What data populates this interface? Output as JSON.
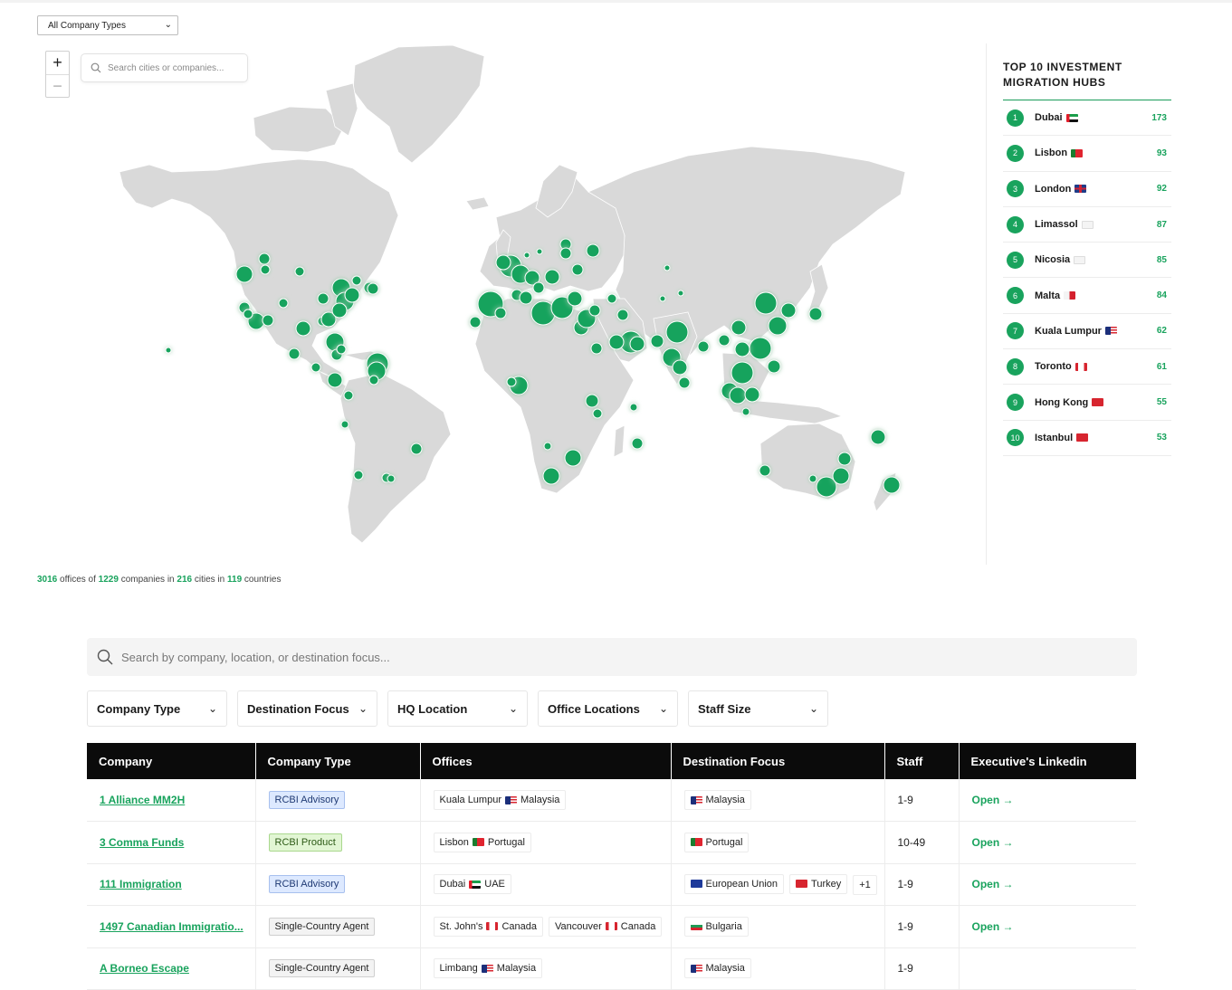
{
  "map": {
    "company_type_select": {
      "value": "All Company Types",
      "options": [
        "All Company Types"
      ]
    },
    "zoom_in": "+",
    "zoom_out": "−",
    "search_placeholder": "Search cities or companies...",
    "summary": {
      "offices": "3016",
      "offices_text": "offices of",
      "companies": "1229",
      "companies_text": "companies in",
      "cities": "216",
      "cities_text": "cities in",
      "countries": "119",
      "countries_text": "countries"
    },
    "marker_color": "#19a35d",
    "land_color": "#d9d9d9"
  },
  "hubs": {
    "title": "TOP 10 INVESTMENT MIGRATION HUBS",
    "items": [
      {
        "rank": "1",
        "city": "Dubai",
        "flag": "ae",
        "count": "173"
      },
      {
        "rank": "2",
        "city": "Lisbon",
        "flag": "pt",
        "count": "93"
      },
      {
        "rank": "3",
        "city": "London",
        "flag": "gb",
        "count": "92"
      },
      {
        "rank": "4",
        "city": "Limassol",
        "flag": "cy",
        "count": "87"
      },
      {
        "rank": "5",
        "city": "Nicosia",
        "flag": "cy",
        "count": "85"
      },
      {
        "rank": "6",
        "city": "Malta",
        "flag": "mt",
        "count": "84"
      },
      {
        "rank": "7",
        "city": "Kuala Lumpur",
        "flag": "my",
        "count": "62"
      },
      {
        "rank": "8",
        "city": "Toronto",
        "flag": "ca",
        "count": "61"
      },
      {
        "rank": "9",
        "city": "Hong Kong",
        "flag": "hk",
        "count": "55"
      },
      {
        "rank": "10",
        "city": "Istanbul",
        "flag": "tr",
        "count": "53"
      }
    ]
  },
  "directory": {
    "search_placeholder": "Search by company, location, or destination focus...",
    "filters": [
      "Company Type",
      "Destination Focus",
      "HQ Location",
      "Office Locations",
      "Staff Size"
    ],
    "columns": [
      "Company",
      "Company Type",
      "Offices",
      "Destination Focus",
      "Staff",
      "Executive's Linkedin"
    ],
    "rows": [
      {
        "company": "1 Alliance MM2H",
        "type": "RCBI Advisory",
        "type_style": "advisory",
        "offices": [
          {
            "city": "Kuala Lumpur",
            "flag": "my",
            "country": "Malaysia"
          }
        ],
        "focus": [
          {
            "flag": "my",
            "name": "Malaysia"
          }
        ],
        "focus_more": "",
        "staff": "1-9",
        "linkedin": "Open →"
      },
      {
        "company": "3 Comma Funds",
        "type": "RCBI Product",
        "type_style": "product",
        "offices": [
          {
            "city": "Lisbon",
            "flag": "pt",
            "country": "Portugal"
          }
        ],
        "focus": [
          {
            "flag": "pt",
            "name": "Portugal"
          }
        ],
        "focus_more": "",
        "staff": "10-49",
        "linkedin": "Open →"
      },
      {
        "company": "111 Immigration",
        "type": "RCBI Advisory",
        "type_style": "advisory",
        "offices": [
          {
            "city": "Dubai",
            "flag": "ae",
            "country": "UAE"
          }
        ],
        "focus": [
          {
            "flag": "eu",
            "name": "European Union"
          },
          {
            "flag": "tr",
            "name": "Turkey"
          }
        ],
        "focus_more": "+1",
        "staff": "1-9",
        "linkedin": "Open →"
      },
      {
        "company": "1497 Canadian Immigratio...",
        "type": "Single-Country Agent",
        "type_style": "agent",
        "offices": [
          {
            "city": "St. John's",
            "flag": "ca",
            "country": "Canada"
          },
          {
            "city": "Vancouver",
            "flag": "ca",
            "country": "Canada"
          }
        ],
        "focus": [
          {
            "flag": "bg",
            "name": "Bulgaria"
          }
        ],
        "focus_more": "",
        "staff": "1-9",
        "linkedin": "Open →"
      },
      {
        "company": "A Borneo Escape",
        "type": "Single-Country Agent",
        "type_style": "agent",
        "offices": [
          {
            "city": "Limbang",
            "flag": "my",
            "country": "Malaysia"
          }
        ],
        "focus": [
          {
            "flag": "my",
            "name": "Malaysia"
          }
        ],
        "focus_more": "",
        "staff": "1-9",
        "linkedin": ""
      }
    ]
  }
}
